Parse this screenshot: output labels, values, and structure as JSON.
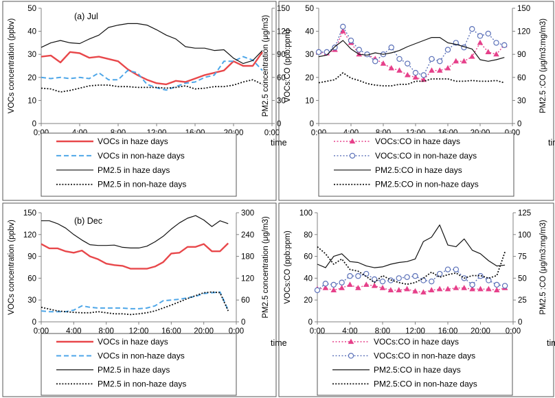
{
  "panel_colors": {
    "red": "#e8474a",
    "blue": "#4da6e8",
    "pink": "#e6408a",
    "navy": "#5a70b8",
    "black": "#111111"
  },
  "chart_data": [
    {
      "type": "line",
      "panel_label": "(a) Jul",
      "xlabel": "time",
      "ylabel": "VOCs concentration (ppbv)",
      "y2label": "PM2.5 concentration (μg/m3)",
      "x": [
        0,
        1,
        2,
        3,
        4,
        5,
        6,
        7,
        8,
        9,
        10,
        11,
        12,
        13,
        14,
        15,
        16,
        17,
        18,
        19,
        20,
        21,
        22,
        23
      ],
      "xticks": [
        "0:00",
        "4:00",
        "8:00",
        "12:00",
        "16:00",
        "20:00",
        "0:00"
      ],
      "ylim": [
        0,
        50
      ],
      "yticks": [
        "0",
        "10",
        "20",
        "30",
        "40",
        "50"
      ],
      "y2lim": [
        0,
        150
      ],
      "y2ticks": [
        "0",
        "30",
        "60",
        "90",
        "120",
        "150"
      ],
      "series": [
        {
          "name": "VOCs in haze days",
          "axis": "left",
          "style": "red-thick",
          "values": [
            29,
            29.5,
            26.5,
            31,
            30.5,
            28.5,
            29,
            28,
            27,
            23.5,
            21,
            19,
            17.5,
            17,
            18.5,
            18,
            19.5,
            21,
            22,
            23,
            27,
            25,
            25,
            31
          ]
        },
        {
          "name": "VOCs in non-haze days",
          "axis": "left",
          "style": "blue-dash",
          "values": [
            20,
            19.5,
            20,
            19.5,
            20,
            19.5,
            22,
            19,
            19,
            23,
            22,
            17,
            15.5,
            14.5,
            16,
            17.5,
            18,
            20,
            21,
            27,
            27,
            29,
            27.5,
            23
          ]
        },
        {
          "name": "PM2.5 in haze days",
          "axis": "right",
          "style": "black-solid",
          "values": [
            99,
            105,
            108,
            105,
            104,
            110,
            115,
            125,
            128,
            130,
            130,
            128,
            122,
            115,
            110,
            100,
            98,
            98,
            95,
            96,
            85,
            78,
            82,
            95
          ]
        },
        {
          "name": "PM2.5 in non-haze days",
          "axis": "right",
          "style": "black-dot",
          "values": [
            46,
            45,
            41,
            43,
            46,
            49,
            50,
            50,
            48,
            48,
            47,
            47,
            47,
            46,
            47,
            49,
            45,
            46,
            48,
            48,
            50,
            54,
            57,
            51
          ]
        }
      ]
    },
    {
      "type": "line",
      "xlabel": "time",
      "ylabel": "VOCs:CO (ppb:ppm)",
      "y2label": "PM2.5 :CO (μg/m3:mg/m3)",
      "x": [
        0,
        1,
        2,
        3,
        4,
        5,
        6,
        7,
        8,
        9,
        10,
        11,
        12,
        13,
        14,
        15,
        16,
        17,
        18,
        19,
        20,
        21,
        22,
        23
      ],
      "xticks": [
        "0:00",
        "4:00",
        "8:00",
        "12:00",
        "16:00",
        "20:00",
        "0:00"
      ],
      "ylim": [
        0,
        50
      ],
      "yticks": [
        "0",
        "10",
        "20",
        "30",
        "40",
        "50"
      ],
      "y2lim": [
        0,
        150
      ],
      "y2ticks": [
        "0",
        "30",
        "60",
        "90",
        "120",
        "150"
      ],
      "series": [
        {
          "name": "VOCs:CO in haze days",
          "axis": "left",
          "style": "pink-tri",
          "values": [
            31,
            30.5,
            32,
            40,
            35,
            30,
            30,
            28,
            26,
            24,
            23,
            21,
            20,
            19,
            23,
            23,
            24,
            27,
            27,
            29,
            35,
            31,
            30,
            34
          ]
        },
        {
          "name": "VOCs:CO in non-haze days",
          "axis": "left",
          "style": "navy-circ",
          "values": [
            31,
            31,
            33,
            42,
            36,
            32,
            30,
            27,
            30,
            33,
            28,
            26,
            22,
            21,
            28,
            27,
            32,
            35,
            33,
            41,
            38,
            39,
            35,
            34
          ]
        },
        {
          "name": "PM2.5:CO in haze days",
          "axis": "right",
          "style": "black-solid",
          "values": [
            87,
            89,
            100,
            108,
            97,
            90,
            89,
            92,
            90,
            92,
            95,
            100,
            104,
            108,
            112,
            112,
            105,
            103,
            100,
            97,
            83,
            81,
            83,
            86
          ]
        },
        {
          "name": "PM2.5:CO in non-haze days",
          "axis": "right",
          "style": "black-dot",
          "values": [
            53,
            55,
            57,
            66,
            59,
            56,
            52,
            50,
            49,
            49,
            51,
            51,
            55,
            55,
            58,
            58,
            58,
            55,
            55,
            56,
            55,
            55,
            56,
            53
          ]
        }
      ]
    },
    {
      "type": "line",
      "panel_label": "(b) Dec",
      "xlabel": "time",
      "ylabel": "VOCs concentration (ppbv)",
      "y2label": "PM2.5 concentration (μg/m3)",
      "x": [
        0,
        1,
        2,
        3,
        4,
        5,
        6,
        7,
        8,
        9,
        10,
        11,
        12,
        13,
        14,
        15,
        16,
        17,
        18,
        19,
        20,
        21,
        22,
        23
      ],
      "xticks": [
        "0:00",
        "4:00",
        "8:00",
        "12:00",
        "16:00",
        "20:00",
        "0:00"
      ],
      "ylim": [
        0,
        150
      ],
      "yticks": [
        "0",
        "30",
        "60",
        "90",
        "120",
        "150"
      ],
      "y2lim": [
        0,
        300
      ],
      "y2ticks": [
        "0",
        "60",
        "120",
        "180",
        "240",
        "300"
      ],
      "series": [
        {
          "name": "VOCs in haze days",
          "axis": "left",
          "style": "red-thick",
          "values": [
            107,
            101,
            101,
            97,
            95,
            98,
            90,
            86,
            80,
            78,
            77,
            73,
            73,
            73,
            76,
            82,
            94,
            95,
            103,
            103,
            107,
            97,
            97,
            108
          ]
        },
        {
          "name": "VOCs in non-haze days",
          "axis": "left",
          "style": "blue-dash",
          "values": [
            15,
            14,
            14,
            14,
            16,
            22,
            20,
            19,
            19,
            19,
            19,
            18,
            18,
            19,
            22,
            29,
            30,
            31,
            33,
            35,
            39,
            40,
            41,
            16
          ]
        },
        {
          "name": "PM2.5 in haze days",
          "axis": "right",
          "style": "black-solid",
          "values": [
            278,
            278,
            270,
            258,
            240,
            225,
            212,
            210,
            210,
            211,
            205,
            203,
            203,
            208,
            220,
            235,
            255,
            272,
            285,
            292,
            280,
            262,
            278,
            270
          ]
        },
        {
          "name": "PM2.5 in non-haze days",
          "axis": "right",
          "style": "black-dot",
          "values": [
            40,
            35,
            30,
            28,
            26,
            25,
            25,
            28,
            25,
            22,
            22,
            20,
            22,
            25,
            30,
            38,
            46,
            55,
            64,
            72,
            80,
            82,
            80,
            30
          ]
        }
      ]
    },
    {
      "type": "line",
      "xlabel": "time",
      "ylabel": "VOCs:CO (ppb:ppm)",
      "y2label": "PM2.5 :CO (μg/m3:mg/m3)",
      "x": [
        0,
        1,
        2,
        3,
        4,
        5,
        6,
        7,
        8,
        9,
        10,
        11,
        12,
        13,
        14,
        15,
        16,
        17,
        18,
        19,
        20,
        21,
        22,
        23
      ],
      "xticks": [
        "0:00",
        "4:00",
        "8:00",
        "12:00",
        "16:00",
        "20:00",
        "0:00"
      ],
      "ylim": [
        0,
        100
      ],
      "yticks": [
        "0",
        "20",
        "40",
        "60",
        "80",
        "100"
      ],
      "y2lim": [
        0,
        125
      ],
      "y2ticks": [
        "0",
        "25",
        "50",
        "75",
        "100",
        "125"
      ],
      "series": [
        {
          "name": "VOCs:CO in haze days",
          "axis": "left",
          "style": "pink-tri",
          "values": [
            30,
            31,
            29,
            31,
            34,
            31,
            34,
            33,
            31,
            29,
            29,
            30,
            28,
            27,
            29,
            30,
            30,
            31,
            31,
            30,
            30,
            30,
            29,
            31
          ]
        },
        {
          "name": "VOCs:CO in non-haze days",
          "axis": "left",
          "style": "navy-circ",
          "values": [
            29,
            35,
            34,
            36,
            42,
            42,
            44,
            39,
            37,
            38,
            40,
            41,
            42,
            38,
            37,
            44,
            48,
            48,
            40,
            34,
            42,
            38,
            34,
            33
          ]
        },
        {
          "name": "PM2.5:CO in haze days",
          "axis": "right",
          "style": "black-solid",
          "values": [
            66,
            62,
            75,
            78,
            69,
            68,
            64,
            62,
            63,
            66,
            68,
            69,
            72,
            92,
            97,
            111,
            88,
            86,
            95,
            82,
            78,
            70,
            64,
            65
          ]
        },
        {
          "name": "PM2.5:CO in non-haze days",
          "axis": "right",
          "style": "black-dot",
          "values": [
            86,
            78,
            66,
            72,
            60,
            58,
            52,
            45,
            53,
            48,
            45,
            43,
            45,
            50,
            57,
            51,
            54,
            56,
            50,
            53,
            53,
            50,
            53,
            80
          ]
        }
      ]
    }
  ]
}
